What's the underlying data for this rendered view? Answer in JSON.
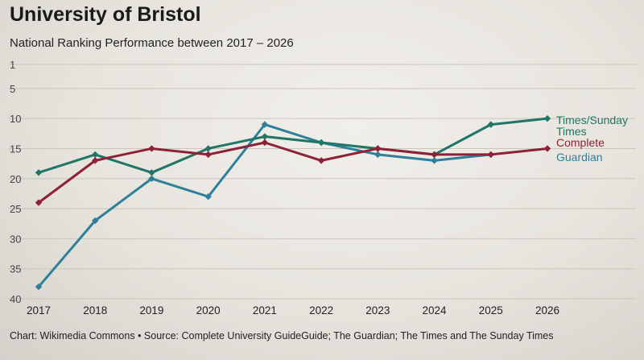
{
  "title": "University of Bristol",
  "subtitle": "National Ranking Performance between 2017 – 2026",
  "footer": "Chart: Wikimedia Commons • Source: Complete University GuideGuide; The Guardian; The Times and  The Sunday Times",
  "chart_data": {
    "type": "line",
    "title": "University of Bristol",
    "subtitle": "National Ranking Performance between 2017 – 2026",
    "xlabel": "",
    "ylabel": "",
    "x": [
      "2017",
      "2018",
      "2019",
      "2020",
      "2021",
      "2022",
      "2023",
      "2024",
      "2025",
      "2026"
    ],
    "y_ticks": [
      "1",
      "5",
      "10",
      "15",
      "20",
      "25",
      "30",
      "35",
      "40"
    ],
    "ylim": [
      1,
      40
    ],
    "y_inverted": true,
    "grid": true,
    "legend": "right",
    "series": [
      {
        "name": "Guardian",
        "color": "#2e7f99",
        "values": [
          38,
          27,
          20,
          23,
          11,
          14,
          16,
          17,
          16,
          null
        ]
      },
      {
        "name": "Times/Sunday Times",
        "color": "#1f7566",
        "values": [
          19,
          16,
          19,
          15,
          13,
          14,
          15,
          16,
          11,
          10
        ]
      },
      {
        "name": "Complete",
        "color": "#8e2137",
        "values": [
          24,
          17,
          15,
          16,
          14,
          17,
          15,
          16,
          16,
          15
        ]
      }
    ]
  }
}
